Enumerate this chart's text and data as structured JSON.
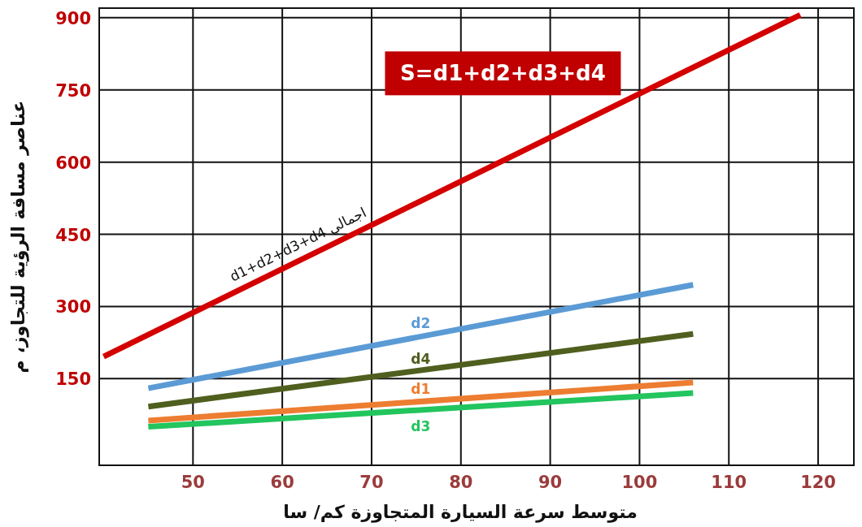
{
  "chart_data": {
    "type": "line",
    "xlabel": "متوسط سرعة السيارة المتجاوزة كم/ سا",
    "ylabel": "عناصر مسافة الرؤية للتجاوز، م",
    "xlim": [
      39.5,
      124
    ],
    "ylim": [
      -30,
      920
    ],
    "xticks": [
      50,
      60,
      70,
      80,
      90,
      100,
      110,
      120
    ],
    "yticks": [
      150,
      300,
      450,
      600,
      750,
      900
    ],
    "grid": true,
    "marker": "none",
    "line_style": "solid",
    "annotations": [
      "S=d1+d2+d3+d4"
    ],
    "series": [
      {
        "name": "اجمالي d1+d2+d3+d4",
        "color": "#d40000",
        "x": [
          40,
          118
        ],
        "values": [
          196,
          906
        ]
      },
      {
        "name": "d2",
        "color": "#5b9bd5",
        "x": [
          45,
          106
        ],
        "values": [
          130,
          345
        ]
      },
      {
        "name": "d4",
        "color": "#4f5f1e",
        "x": [
          45,
          106
        ],
        "values": [
          92,
          243
        ]
      },
      {
        "name": "d1",
        "color": "#ed7d31",
        "x": [
          45,
          106
        ],
        "values": [
          63,
          142
        ]
      },
      {
        "name": "d3",
        "color": "#22c55e",
        "x": [
          45,
          106
        ],
        "values": [
          50,
          120
        ]
      }
    ]
  }
}
